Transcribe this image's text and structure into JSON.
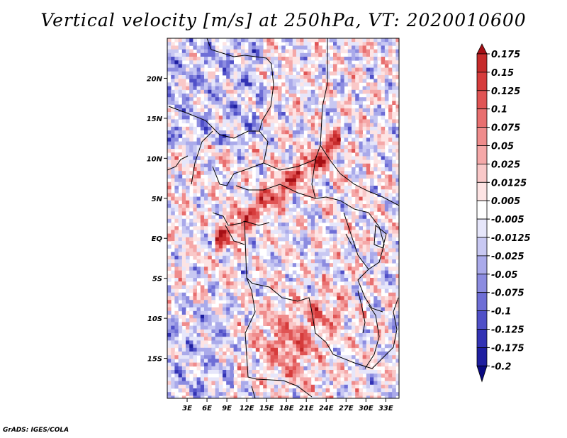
{
  "title": "Vertical velocity [m/s] at 250hPa, VT: 2020010600",
  "credit": "GrADS: IGES/COLA",
  "chart_data": {
    "type": "heatmap",
    "title": "Vertical velocity [m/s] at 250hPa, VT: 2020010600",
    "variable": "Vertical velocity",
    "units": "m/s",
    "level": "250hPa",
    "valid_time": "2020010600",
    "lon_range": [
      0,
      35
    ],
    "lat_range": [
      -20,
      25
    ],
    "x_ticks": [
      {
        "value": 3,
        "label": "3E"
      },
      {
        "value": 6,
        "label": "6E"
      },
      {
        "value": 9,
        "label": "9E"
      },
      {
        "value": 12,
        "label": "12E"
      },
      {
        "value": 15,
        "label": "15E"
      },
      {
        "value": 18,
        "label": "18E"
      },
      {
        "value": 21,
        "label": "21E"
      },
      {
        "value": 24,
        "label": "24E"
      },
      {
        "value": 27,
        "label": "27E"
      },
      {
        "value": 30,
        "label": "30E"
      },
      {
        "value": 33,
        "label": "33E"
      }
    ],
    "y_ticks": [
      {
        "value": 20,
        "label": "20N"
      },
      {
        "value": 15,
        "label": "15N"
      },
      {
        "value": 10,
        "label": "10N"
      },
      {
        "value": 5,
        "label": "5N"
      },
      {
        "value": 0,
        "label": "EQ"
      },
      {
        "value": -5,
        "label": "5S"
      },
      {
        "value": -10,
        "label": "10S"
      },
      {
        "value": -15,
        "label": "15S"
      }
    ],
    "colorbar": {
      "labels": [
        "0.175",
        "0.15",
        "0.125",
        "0.1",
        "0.075",
        "0.05",
        "0.025",
        "0.0125",
        "0.005",
        "-0.005",
        "-0.0125",
        "-0.025",
        "-0.05",
        "-0.075",
        "-0.1",
        "-0.125",
        "-0.175",
        "-0.2"
      ],
      "colors": [
        "#a50f15",
        "#c62b2b",
        "#d63c3c",
        "#e05454",
        "#e86f6f",
        "#ef8c8c",
        "#f5a8a8",
        "#f9c8c8",
        "#fde4e4",
        "#ffffff",
        "#e6e6fa",
        "#c8c8f2",
        "#aaaaea",
        "#8c8ce0",
        "#6e6ed6",
        "#5050c8",
        "#3232b4",
        "#1e1ea0",
        "#0a0a82"
      ]
    },
    "notable_features": [
      "Positive ascent band oriented SW-NE from about 9E,0N to 24E,10N",
      "Strong ascent cores over southern Congo basin near 15E-22E, 8S-18S",
      "Mixed negative subsidence over Sahel and West Africa"
    ]
  }
}
